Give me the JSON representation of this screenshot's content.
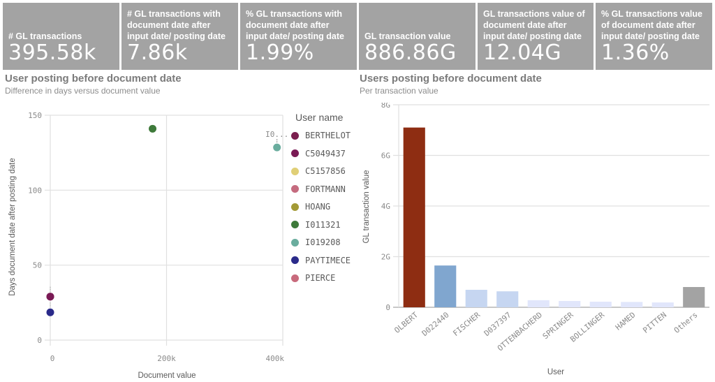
{
  "kpis": [
    {
      "label": "# GL transactions",
      "value": "395.58k"
    },
    {
      "label": "# GL transactions with document date after input date/ posting date",
      "value": "7.86k"
    },
    {
      "label": "% GL transactions with document date after input date/ posting date",
      "value": "1.99%"
    },
    {
      "label": "GL transaction value",
      "value": "886.86G"
    },
    {
      "label": "GL transactions value of document date after input date/ posting date",
      "value": "12.04G"
    },
    {
      "label": "% GL transactions value of document date after input date/ posting date",
      "value": "1.36%"
    }
  ],
  "colors": {
    "kpi_bg": "#a3a3a3",
    "grid": "#e0e0e0",
    "axis": "#c8c8c8"
  },
  "chart_data": [
    {
      "type": "scatter",
      "title": "User posting before document date",
      "subtitle": "Difference in days versus document value",
      "xlabel": "Document value",
      "ylabel": "Days document date after posting date",
      "xlim": [
        0,
        400000
      ],
      "ylim": [
        0,
        150
      ],
      "x_ticks": [
        {
          "v": 0,
          "label": "0"
        },
        {
          "v": 200000,
          "label": "200k"
        },
        {
          "v": 400000,
          "label": "400k"
        }
      ],
      "y_ticks": [
        {
          "v": 0,
          "label": "0"
        },
        {
          "v": 50,
          "label": "50"
        },
        {
          "v": 100,
          "label": "100"
        },
        {
          "v": 150,
          "label": "150"
        }
      ],
      "grid": true,
      "legend_title": "User name",
      "legend_placement": "right",
      "series": [
        {
          "name": "BERTHELOT",
          "color": "#7b1f4f",
          "points": [
            {
              "x": 0,
              "y": 29
            }
          ]
        },
        {
          "name": "C5049437",
          "color": "#7a1a55",
          "points": [
            {
              "x": 0,
              "y": 29
            }
          ]
        },
        {
          "name": "C5157856",
          "color": "#e0cf77",
          "points": []
        },
        {
          "name": "FORTMANN",
          "color": "#c56b7f",
          "points": []
        },
        {
          "name": "HOANG",
          "color": "#a39a36",
          "points": []
        },
        {
          "name": "I011321",
          "color": "#3e7a3a",
          "points": [
            {
              "x": 176000,
              "y": 141
            }
          ]
        },
        {
          "name": "I019208",
          "color": "#6aad9e",
          "points": [
            {
              "x": 390000,
              "y": 128.5,
              "label": "I0..."
            }
          ]
        },
        {
          "name": "PAYTIMECE",
          "color": "#2a2a8a",
          "points": [
            {
              "x": 0,
              "y": 18.5
            }
          ]
        },
        {
          "name": "PIERCE",
          "color": "#c86a7c",
          "points": []
        }
      ]
    },
    {
      "type": "bar",
      "title": "Users posting before document date",
      "subtitle": "Per transaction value",
      "xlabel": "User",
      "ylabel": "GL transaction value",
      "ylim": [
        0,
        8000000000
      ],
      "y_ticks": [
        {
          "v": 0,
          "label": "0"
        },
        {
          "v": 2000000000,
          "label": "2G"
        },
        {
          "v": 4000000000,
          "label": "4G"
        },
        {
          "v": 6000000000,
          "label": "6G"
        },
        {
          "v": 8000000000,
          "label": "8G"
        }
      ],
      "grid": true,
      "categories": [
        "OLBERT",
        "D022440",
        "FISCHER",
        "D037397",
        "OTTENBACHERD",
        "SPRINGER",
        "BOLLINGER",
        "HAMED",
        "PITTEN",
        "Others"
      ],
      "values": [
        7100000000,
        1650000000,
        690000000,
        630000000,
        280000000,
        250000000,
        220000000,
        210000000,
        190000000,
        800000000
      ],
      "bar_colors": [
        "#8e2d12",
        "#80a6cf",
        "#c6d6f1",
        "#c6d6f1",
        "#e1e6fb",
        "#e1e6fb",
        "#e1e6fb",
        "#e1e6fb",
        "#e1e6fb",
        "#a3a3a3"
      ]
    }
  ]
}
